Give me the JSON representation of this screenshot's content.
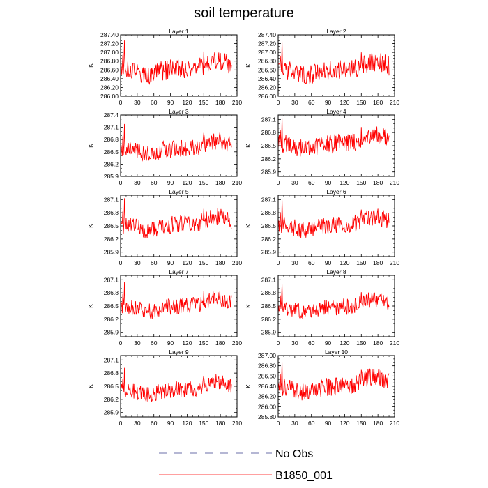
{
  "figure": {
    "title": "soil temperature",
    "ylabel": "K",
    "line_color": "#ff0000",
    "noobs_color": "#6b6fa8",
    "legend": [
      {
        "name": "No Obs",
        "style": "dashed"
      },
      {
        "name": "B1850_001",
        "style": "solid"
      }
    ]
  },
  "chart_data": [
    {
      "type": "line",
      "title": "Layer 1",
      "ylabel": "K",
      "xlim": [
        0,
        210
      ],
      "ylim": [
        286.0,
        287.4
      ],
      "xticks": [
        "0",
        "30",
        "60",
        "90",
        "120",
        "150",
        "180",
        "210"
      ],
      "yticks": [
        "286.00",
        "286.20",
        "286.40",
        "286.60",
        "286.80",
        "287.00",
        "287.20",
        "287.40"
      ],
      "series": [
        {
          "name": "B1850_001",
          "x_range": [
            0,
            200
          ],
          "base": 286.62,
          "amp": 0.5,
          "spike": 1.3,
          "seed": 1
        }
      ]
    },
    {
      "type": "line",
      "title": "Layer 2",
      "ylabel": "K",
      "xlim": [
        0,
        210
      ],
      "ylim": [
        286.0,
        287.4
      ],
      "xticks": [
        "0",
        "30",
        "60",
        "90",
        "120",
        "150",
        "180",
        "210"
      ],
      "yticks": [
        "286.00",
        "286.20",
        "286.40",
        "286.60",
        "286.80",
        "287.00",
        "287.20",
        "287.40"
      ],
      "series": [
        {
          "name": "B1850_001",
          "x_range": [
            0,
            200
          ],
          "base": 286.6,
          "amp": 0.5,
          "spike": 1.3,
          "seed": 2
        }
      ]
    },
    {
      "type": "line",
      "title": "Layer 3",
      "ylabel": "K",
      "xlim": [
        0,
        210
      ],
      "ylim": [
        285.9,
        287.4
      ],
      "xticks": [
        "0",
        "30",
        "60",
        "90",
        "120",
        "150",
        "180",
        "210"
      ],
      "yticks": [
        "285.9",
        "286.2",
        "286.5",
        "286.8",
        "287.1",
        "287.4"
      ],
      "series": [
        {
          "name": "B1850_001",
          "x_range": [
            0,
            200
          ],
          "base": 286.58,
          "amp": 0.48,
          "spike": 1.2,
          "seed": 3
        }
      ]
    },
    {
      "type": "line",
      "title": "Layer 4",
      "ylabel": "K",
      "xlim": [
        0,
        210
      ],
      "ylim": [
        285.8,
        287.2
      ],
      "xticks": [
        "0",
        "30",
        "60",
        "90",
        "120",
        "150",
        "180",
        "210"
      ],
      "yticks": [
        "285.9",
        "286.2",
        "286.5",
        "286.8",
        "287.1"
      ],
      "series": [
        {
          "name": "B1850_001",
          "x_range": [
            0,
            200
          ],
          "base": 286.55,
          "amp": 0.47,
          "spike": 1.2,
          "seed": 4
        }
      ]
    },
    {
      "type": "line",
      "title": "Layer 5",
      "ylabel": "K",
      "xlim": [
        0,
        210
      ],
      "ylim": [
        285.8,
        287.2
      ],
      "xticks": [
        "0",
        "30",
        "60",
        "90",
        "120",
        "150",
        "180",
        "210"
      ],
      "yticks": [
        "285.9",
        "286.2",
        "286.5",
        "286.8",
        "287.1"
      ],
      "series": [
        {
          "name": "B1850_001",
          "x_range": [
            0,
            200
          ],
          "base": 286.53,
          "amp": 0.45,
          "spike": 1.2,
          "seed": 5
        }
      ]
    },
    {
      "type": "line",
      "title": "Layer 6",
      "ylabel": "K",
      "xlim": [
        0,
        210
      ],
      "ylim": [
        285.8,
        287.2
      ],
      "xticks": [
        "0",
        "30",
        "60",
        "90",
        "120",
        "150",
        "180",
        "210"
      ],
      "yticks": [
        "285.9",
        "286.2",
        "286.5",
        "286.8",
        "287.1"
      ],
      "series": [
        {
          "name": "B1850_001",
          "x_range": [
            0,
            200
          ],
          "base": 286.52,
          "amp": 0.44,
          "spike": 1.15,
          "seed": 6
        }
      ]
    },
    {
      "type": "line",
      "title": "Layer 7",
      "ylabel": "K",
      "xlim": [
        0,
        210
      ],
      "ylim": [
        285.8,
        287.2
      ],
      "xticks": [
        "0",
        "30",
        "60",
        "90",
        "120",
        "150",
        "180",
        "210"
      ],
      "yticks": [
        "285.9",
        "286.2",
        "286.5",
        "286.8",
        "287.1"
      ],
      "series": [
        {
          "name": "B1850_001",
          "x_range": [
            0,
            200
          ],
          "base": 286.5,
          "amp": 0.42,
          "spike": 1.1,
          "seed": 7
        }
      ]
    },
    {
      "type": "line",
      "title": "Layer 8",
      "ylabel": "K",
      "xlim": [
        0,
        210
      ],
      "ylim": [
        285.8,
        287.2
      ],
      "xticks": [
        "0",
        "30",
        "60",
        "90",
        "120",
        "150",
        "180",
        "210"
      ],
      "yticks": [
        "285.9",
        "286.2",
        "286.5",
        "286.8",
        "287.1"
      ],
      "series": [
        {
          "name": "B1850_001",
          "x_range": [
            0,
            200
          ],
          "base": 286.48,
          "amp": 0.42,
          "spike": 1.05,
          "seed": 8
        }
      ]
    },
    {
      "type": "line",
      "title": "Layer 9",
      "ylabel": "K",
      "xlim": [
        0,
        210
      ],
      "ylim": [
        285.8,
        287.2
      ],
      "xticks": [
        "0",
        "30",
        "60",
        "90",
        "120",
        "150",
        "180",
        "210"
      ],
      "yticks": [
        "285.9",
        "286.2",
        "286.5",
        "286.8",
        "287.1"
      ],
      "series": [
        {
          "name": "B1850_001",
          "x_range": [
            0,
            200
          ],
          "base": 286.42,
          "amp": 0.4,
          "spike": 1.0,
          "seed": 9
        }
      ]
    },
    {
      "type": "line",
      "title": "Layer 10",
      "ylabel": "K",
      "xlim": [
        0,
        210
      ],
      "ylim": [
        285.8,
        287.0
      ],
      "xticks": [
        "0",
        "30",
        "60",
        "90",
        "120",
        "150",
        "180",
        "210"
      ],
      "yticks": [
        "285.80",
        "286.00",
        "286.20",
        "286.40",
        "286.60",
        "286.80",
        "287.00"
      ],
      "series": [
        {
          "name": "B1850_001",
          "x_range": [
            0,
            200
          ],
          "base": 286.4,
          "amp": 0.4,
          "spike": 0.95,
          "seed": 10
        }
      ]
    }
  ]
}
